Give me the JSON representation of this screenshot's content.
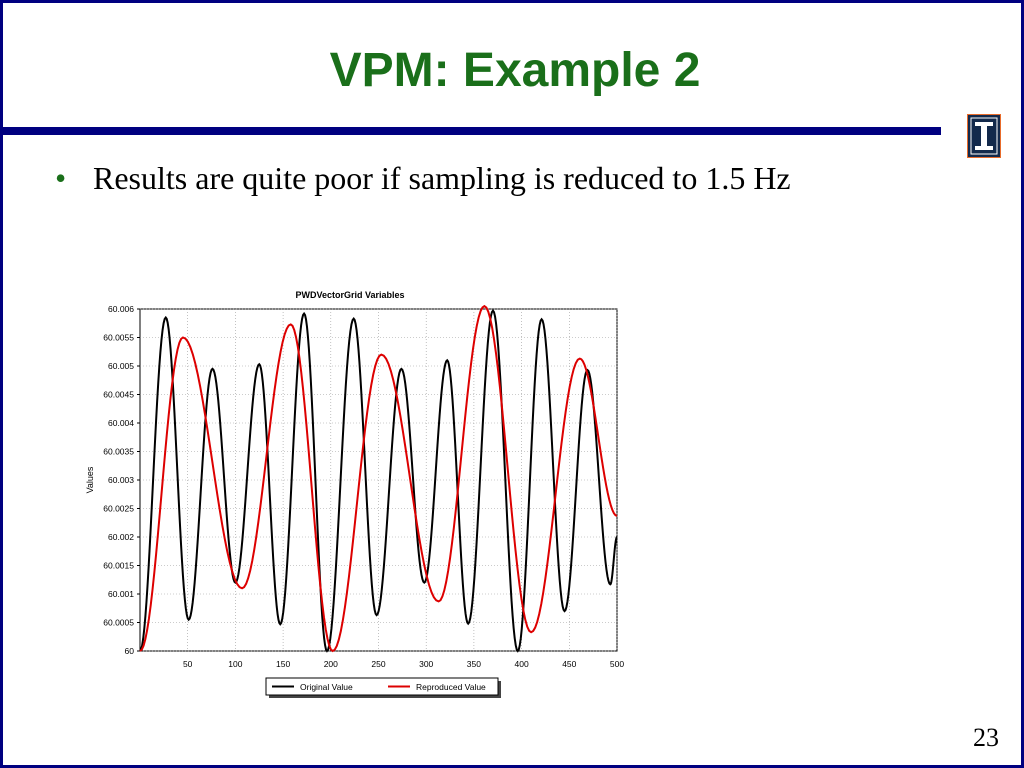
{
  "slide": {
    "title": "VPM: Example 2",
    "bullet": "Results are quite poor if sampling is reduced to 1.5 Hz",
    "page_number": "23",
    "colors": {
      "title": "#1a6f1a",
      "rule": "#000080",
      "border": "#000080"
    }
  },
  "chart_data": {
    "type": "line",
    "title": "PWDVectorGrid Variables",
    "xlabel": "",
    "ylabel": "Values",
    "xlim": [
      0,
      500
    ],
    "ylim": [
      60,
      60.006
    ],
    "x_ticks": [
      50,
      100,
      150,
      200,
      250,
      300,
      350,
      400,
      450,
      500
    ],
    "y_ticks": [
      "60",
      "60.0005",
      "60.001",
      "60.0015",
      "60.002",
      "60.0025",
      "60.003",
      "60.0035",
      "60.004",
      "60.0045",
      "60.005",
      "60.0055",
      "60.006"
    ],
    "grid": true,
    "legend": "bottom",
    "series": [
      {
        "name": "Original Value",
        "color": "#000000",
        "x": [
          0,
          27,
          51,
          76,
          100,
          125,
          147,
          172,
          196,
          224,
          248,
          274,
          298,
          322,
          344,
          370,
          396,
          421,
          445,
          469,
          493,
          500
        ],
        "y": [
          60.0,
          60.00585,
          60.00055,
          60.00495,
          60.0012,
          60.00503,
          60.00047,
          60.00592,
          60.0,
          60.00583,
          60.00063,
          60.00495,
          60.0012,
          60.0051,
          60.00048,
          60.00597,
          60.0,
          60.00582,
          60.0007,
          60.00493,
          60.00117,
          60.002
        ]
      },
      {
        "name": "Reproduced Value",
        "color": "#dd0000",
        "x": [
          0,
          45,
          107,
          158,
          202,
          253,
          313,
          361,
          410,
          461,
          500
        ],
        "y": [
          60.0,
          60.0055,
          60.0011,
          60.00573,
          60.0,
          60.0052,
          60.00087,
          60.00605,
          60.00033,
          60.00513,
          60.00237
        ]
      }
    ]
  }
}
